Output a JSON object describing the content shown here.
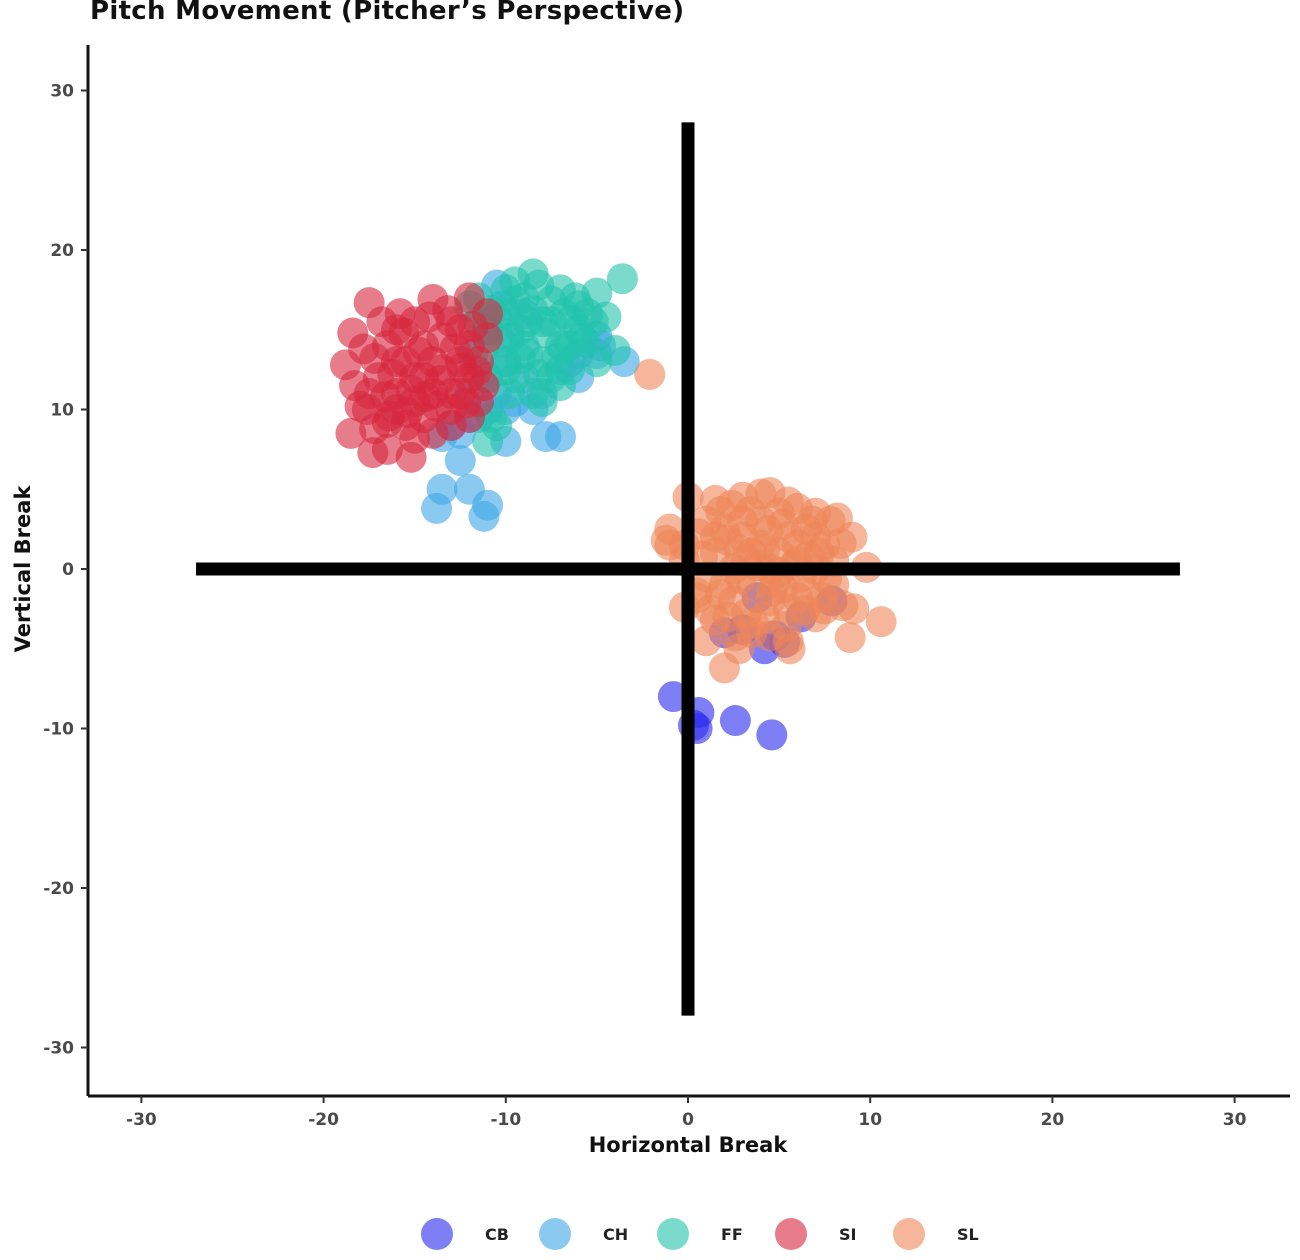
{
  "chart_data": {
    "type": "scatter",
    "title": "Pitch Movement (Pitcher’s Perspective)",
    "xlabel": "Horizontal Break",
    "ylabel": "Vertical Break",
    "xlim": [
      -33,
      33
    ],
    "ylim": [
      -33,
      33
    ],
    "x_ticks": [
      "-30",
      "-20",
      "-10",
      "0",
      "10",
      "20",
      "30"
    ],
    "y_ticks": [
      "30",
      "20",
      "10",
      "0",
      "-10",
      "-20",
      "-30"
    ],
    "grid": false,
    "legend_position": "bottom",
    "reference_lines": {
      "horizontal": {
        "y": 0,
        "x_range": [
          -27,
          27
        ]
      },
      "vertical": {
        "x": 0,
        "y_range": [
          -28,
          28
        ]
      }
    },
    "series": [
      {
        "name": "CB",
        "color": "#2a2aee",
        "points": [
          [
            -0.8,
            -8
          ],
          [
            0.6,
            -9
          ],
          [
            0.5,
            -10
          ],
          [
            0.3,
            -9.8
          ],
          [
            2.6,
            -9.5
          ],
          [
            4.6,
            -10.4
          ],
          [
            3.8,
            -1.8
          ],
          [
            4.2,
            -5
          ],
          [
            2,
            -4
          ],
          [
            7.9,
            -2
          ],
          [
            5.3,
            -4.6
          ],
          [
            3,
            -3.8
          ],
          [
            6.2,
            -3
          ],
          [
            4.8,
            -4.2
          ]
        ]
      },
      {
        "name": "CH",
        "color": "#3ea6e6",
        "points": [
          [
            -13.5,
            5
          ],
          [
            -12,
            5
          ],
          [
            -13.8,
            3.8
          ],
          [
            -11,
            4
          ],
          [
            -11.2,
            3.3
          ],
          [
            -12.5,
            6.8
          ],
          [
            -13.5,
            8.3
          ],
          [
            -10,
            8
          ],
          [
            -7.8,
            8.3
          ],
          [
            -7,
            8.3
          ],
          [
            -3.5,
            13
          ],
          [
            -5,
            13.5
          ],
          [
            -6.5,
            13
          ],
          [
            -10.5,
            17.8
          ],
          [
            -10,
            13
          ],
          [
            -9,
            12
          ],
          [
            -11,
            12
          ],
          [
            -10,
            10
          ],
          [
            -12,
            11
          ],
          [
            -8,
            11
          ],
          [
            -6,
            12
          ],
          [
            -4.8,
            14
          ],
          [
            -5,
            14.6
          ],
          [
            -9.5,
            10.5
          ],
          [
            -11.5,
            9.5
          ],
          [
            -13,
            9
          ],
          [
            -12.5,
            8.5
          ],
          [
            -8.5,
            10
          ],
          [
            -10.5,
            11
          ],
          [
            -7,
            12.5
          ],
          [
            -9,
            16
          ],
          [
            -11,
            15
          ],
          [
            -10.2,
            16.5
          ],
          [
            -9.8,
            14.5
          ],
          [
            -11.8,
            13.5
          ],
          [
            -6,
            13.5
          ],
          [
            -12,
            9.5
          ],
          [
            -11,
            10
          ]
        ]
      },
      {
        "name": "FF",
        "color": "#22c3ab",
        "points": [
          [
            -3.6,
            18.2
          ],
          [
            -8.5,
            18.5
          ],
          [
            -9.5,
            18
          ],
          [
            -7,
            17.5
          ],
          [
            -5,
            17.3
          ],
          [
            -6,
            16.5
          ],
          [
            -10,
            16
          ],
          [
            -11,
            15
          ],
          [
            -8,
            15.5
          ],
          [
            -9,
            14
          ],
          [
            -7,
            14
          ],
          [
            -5.5,
            16
          ],
          [
            -6,
            15
          ],
          [
            -8,
            13
          ],
          [
            -10,
            13
          ],
          [
            -9.5,
            12
          ],
          [
            -7.5,
            12
          ],
          [
            -8.5,
            11
          ],
          [
            -6.5,
            12.5
          ],
          [
            -11,
            12
          ],
          [
            -12,
            16.5
          ],
          [
            -11.5,
            17
          ],
          [
            -10.8,
            9.5
          ],
          [
            -11,
            8
          ],
          [
            -10.5,
            9
          ],
          [
            -4,
            13.7
          ],
          [
            -5,
            13
          ],
          [
            -6.5,
            14
          ],
          [
            -9,
            17
          ],
          [
            -10,
            17.5
          ],
          [
            -7.5,
            16.8
          ],
          [
            -8.2,
            17.8
          ],
          [
            -6.8,
            16
          ],
          [
            -5.2,
            15.5
          ],
          [
            -9.2,
            15
          ],
          [
            -10.2,
            14.2
          ],
          [
            -8.8,
            13.5
          ],
          [
            -7.2,
            13.2
          ],
          [
            -9.8,
            11
          ],
          [
            -8,
            10.5
          ],
          [
            -10.5,
            15.8
          ],
          [
            -11.2,
            13.8
          ],
          [
            -6.2,
            17
          ],
          [
            -5.8,
            14.5
          ],
          [
            -7.8,
            14.8
          ],
          [
            -8.5,
            16.2
          ],
          [
            -9.5,
            16.8
          ],
          [
            -10.8,
            16.2
          ],
          [
            -6.8,
            13.8
          ],
          [
            -7.5,
            15.5
          ],
          [
            -8.8,
            15.5
          ],
          [
            -9.2,
            13.2
          ],
          [
            -10,
            12.5
          ],
          [
            -7,
            11.5
          ],
          [
            -8.2,
            12.2
          ],
          [
            -11.5,
            15.5
          ],
          [
            -4.5,
            15.8
          ],
          [
            -5.6,
            14.2
          ],
          [
            -6.4,
            15.6
          ],
          [
            -9.8,
            14.8
          ]
        ]
      },
      {
        "name": "SI",
        "color": "#d7263d",
        "points": [
          [
            -17.5,
            16.7
          ],
          [
            -18.4,
            14.8
          ],
          [
            -17.2,
            13.2
          ],
          [
            -18.8,
            12.8
          ],
          [
            -18.3,
            11.5
          ],
          [
            -18,
            10.2
          ],
          [
            -18.5,
            8.5
          ],
          [
            -17.2,
            8.8
          ],
          [
            -16.5,
            9.2
          ],
          [
            -17.3,
            7.3
          ],
          [
            -15.2,
            7
          ],
          [
            -16.5,
            7.5
          ],
          [
            -15,
            8.2
          ],
          [
            -14,
            8.5
          ],
          [
            -13,
            9
          ],
          [
            -12,
            9.5
          ],
          [
            -14,
            16.9
          ],
          [
            -12,
            17
          ],
          [
            -11,
            16
          ],
          [
            -12.5,
            15
          ],
          [
            -11,
            14.5
          ],
          [
            -15,
            15.5
          ],
          [
            -16,
            15
          ],
          [
            -16.5,
            14
          ],
          [
            -15.5,
            13
          ],
          [
            -14.5,
            12
          ],
          [
            -13.5,
            12.5
          ],
          [
            -12.5,
            13
          ],
          [
            -11.5,
            13
          ],
          [
            -12,
            12
          ],
          [
            -13,
            11
          ],
          [
            -14,
            11
          ],
          [
            -15,
            10.5
          ],
          [
            -16,
            11
          ],
          [
            -17,
            12
          ],
          [
            -17.5,
            11
          ],
          [
            -16,
            13
          ],
          [
            -14.5,
            14
          ],
          [
            -13.5,
            14.5
          ],
          [
            -12.5,
            11
          ],
          [
            -11.5,
            10.5
          ],
          [
            -13,
            10
          ],
          [
            -14.5,
            9.5
          ],
          [
            -15.5,
            9
          ],
          [
            -16,
            10
          ],
          [
            -12,
            14
          ],
          [
            -14,
            13
          ],
          [
            -15,
            12
          ],
          [
            -13,
            15.5
          ],
          [
            -11.2,
            11.5
          ],
          [
            -14.2,
            15.8
          ],
          [
            -15.8,
            16
          ],
          [
            -16.8,
            15.5
          ],
          [
            -17.8,
            13.8
          ],
          [
            -16.2,
            12.2
          ],
          [
            -15.2,
            11.2
          ],
          [
            -13.8,
            10.2
          ],
          [
            -12.8,
            13.8
          ],
          [
            -11.8,
            15.2
          ],
          [
            -13.2,
            16.2
          ],
          [
            -14.8,
            13.6
          ],
          [
            -15.6,
            14.8
          ],
          [
            -16.6,
            10.8
          ],
          [
            -17.6,
            10
          ],
          [
            -14.4,
            10.8
          ],
          [
            -13.6,
            11.8
          ],
          [
            -12.4,
            12.6
          ],
          [
            -15.4,
            9.8
          ],
          [
            -16.4,
            9.6
          ],
          [
            -12.2,
            10.4
          ],
          [
            -11.6,
            12.4
          ]
        ]
      },
      {
        "name": "SL",
        "color": "#ef8658",
        "points": [
          [
            -2.1,
            12.2
          ],
          [
            0,
            4.5
          ],
          [
            1.5,
            4.3
          ],
          [
            3,
            4.5
          ],
          [
            4,
            4.7
          ],
          [
            4.5,
            4.8
          ],
          [
            5.5,
            4.2
          ],
          [
            6,
            3.8
          ],
          [
            7,
            3.5
          ],
          [
            7.8,
            3
          ],
          [
            8.2,
            3.2
          ],
          [
            9,
            2
          ],
          [
            9.8,
            0.1
          ],
          [
            10.6,
            -3.3
          ],
          [
            8.9,
            -4.3
          ],
          [
            8.5,
            -2.3
          ],
          [
            9.1,
            -2.5
          ],
          [
            -1,
            2.5
          ],
          [
            -1,
            1.5
          ],
          [
            -1.2,
            1.8
          ],
          [
            -0.2,
            0.5
          ],
          [
            -0.2,
            1.5
          ],
          [
            -0.2,
            -2.4
          ],
          [
            0.5,
            -1.5
          ],
          [
            0.5,
            -1.8
          ],
          [
            1.5,
            -3.2
          ],
          [
            1,
            -4.5
          ],
          [
            2,
            -6.2
          ],
          [
            2.8,
            -5
          ],
          [
            3.5,
            -4
          ],
          [
            4.5,
            -4.2
          ],
          [
            5.5,
            -4.5
          ],
          [
            5.6,
            -5
          ],
          [
            7,
            -3
          ],
          [
            7.5,
            -2.5
          ],
          [
            1,
            3
          ],
          [
            2,
            2.5
          ],
          [
            3,
            2
          ],
          [
            4,
            1.5
          ],
          [
            5,
            1
          ],
          [
            6,
            0.5
          ],
          [
            7,
            0
          ],
          [
            8,
            -1
          ],
          [
            2.5,
            0
          ],
          [
            3.5,
            -1
          ],
          [
            4.5,
            -2
          ],
          [
            5.5,
            -2.5
          ],
          [
            6.5,
            -1.5
          ],
          [
            1.5,
            1
          ],
          [
            2.5,
            -2
          ],
          [
            3.5,
            1
          ],
          [
            4.5,
            0
          ],
          [
            5.5,
            2
          ],
          [
            6.5,
            2.5
          ],
          [
            7.5,
            1.5
          ],
          [
            1,
            -0.5
          ],
          [
            2,
            -1
          ],
          [
            3,
            3
          ],
          [
            4,
            3
          ],
          [
            5,
            3.5
          ],
          [
            6,
            1.5
          ],
          [
            7,
            2
          ],
          [
            8,
            0.5
          ],
          [
            1.5,
            2
          ],
          [
            2.2,
            -3
          ],
          [
            3.2,
            -2.8
          ],
          [
            4.2,
            -3
          ],
          [
            5.2,
            -1.2
          ],
          [
            6.2,
            -0.5
          ],
          [
            7.2,
            1
          ],
          [
            0.8,
            0.8
          ],
          [
            1.8,
            3.6
          ],
          [
            2.8,
            1.2
          ],
          [
            3.8,
            0.2
          ],
          [
            4.8,
            -0.8
          ],
          [
            5.8,
            0.2
          ],
          [
            6.8,
            3
          ],
          [
            7.6,
            -0.6
          ],
          [
            8.4,
            1.6
          ],
          [
            2.6,
            -4.2
          ],
          [
            3.6,
            -3.4
          ],
          [
            4.6,
            -1.4
          ],
          [
            5.4,
            -3.6
          ],
          [
            6.4,
            -2.6
          ],
          [
            1.2,
            -2.6
          ],
          [
            0.6,
            2.2
          ],
          [
            2.4,
            4
          ],
          [
            3.4,
            3.6
          ],
          [
            4.4,
            2.4
          ],
          [
            5.2,
            2.8
          ],
          [
            6,
            -1.8
          ],
          [
            7.4,
            -1.8
          ],
          [
            2.2,
            1.8
          ],
          [
            3.2,
            0.6
          ],
          [
            4.2,
            1.2
          ],
          [
            5,
            -0.2
          ],
          [
            6.6,
            0.8
          ],
          [
            1.8,
            -1.6
          ],
          [
            2.9,
            -0.6
          ]
        ]
      }
    ]
  }
}
